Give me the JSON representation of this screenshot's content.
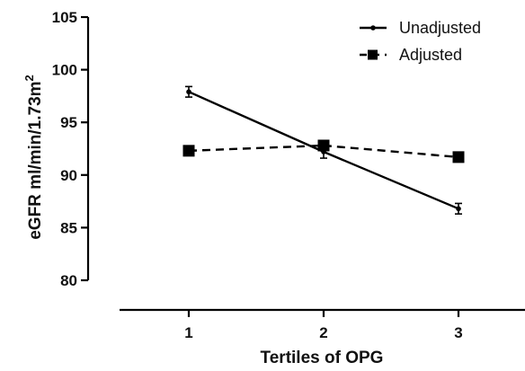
{
  "chart_data": {
    "type": "line",
    "xlabel": "Tertiles of OPG",
    "ylabel_main": "eGFR ml/min/1.73m",
    "ylabel_sup": "2",
    "x": [
      1,
      2,
      3
    ],
    "x_ticks": [
      "1",
      "2",
      "3"
    ],
    "y_ticks": [
      "80",
      "85",
      "90",
      "95",
      "100",
      "105"
    ],
    "ylim": [
      80,
      105
    ],
    "xlim": [
      0.5,
      3.5
    ],
    "grid": false,
    "legend_position": "top-right",
    "series": [
      {
        "name": "Unadjusted",
        "values": [
          97.9,
          92.2,
          86.8
        ],
        "error": [
          0.5,
          0.6,
          0.5
        ],
        "line_style": "solid",
        "marker": "small-circle",
        "color": "#000000"
      },
      {
        "name": "Adjusted",
        "values": [
          92.3,
          92.8,
          91.7
        ],
        "error": [
          0,
          0,
          0
        ],
        "line_style": "dashed",
        "marker": "square",
        "color": "#000000"
      }
    ]
  }
}
